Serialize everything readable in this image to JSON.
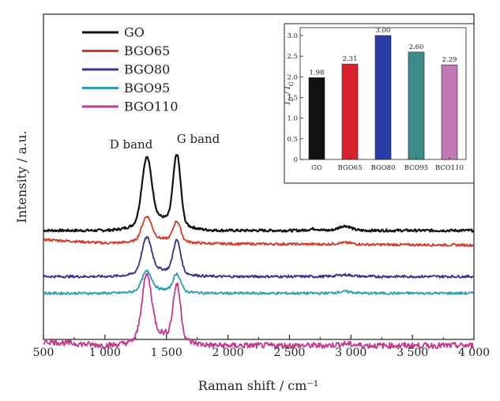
{
  "chart_data": [
    {
      "type": "line",
      "title": "",
      "xlabel": "Raman shift / cm⁻¹",
      "ylabel": "Intensity / a.u.",
      "xlim": [
        500,
        4000
      ],
      "x_ticks": [
        500,
        1000,
        1500,
        2000,
        2500,
        3000,
        3500,
        4000
      ],
      "x_tick_labels": [
        "500",
        "1 000",
        "1 500",
        "2 000",
        "2 500",
        "3 000",
        "3 500",
        "4 000"
      ],
      "y_tick_labels": [],
      "legend_placement": "top-left",
      "annotations": [
        {
          "text": "D band",
          "x": 1340
        },
        {
          "text": "G band",
          "x": 1580
        }
      ],
      "series": [
        {
          "name": "GO",
          "color": "#111111",
          "baseline": 0.5,
          "d_peak": 3.0,
          "g_peak": 3.2,
          "points": [
            [
              500,
              0.5
            ],
            [
              1000,
              0.5
            ],
            [
              1200,
              0.9
            ],
            [
              1340,
              3.5
            ],
            [
              1470,
              1.6
            ],
            [
              1580,
              3.7
            ],
            [
              1700,
              0.6
            ],
            [
              2500,
              0.5
            ],
            [
              2950,
              0.72
            ],
            [
              3200,
              0.55
            ],
            [
              4000,
              0.5
            ]
          ]
        },
        {
          "name": "BGO65",
          "color": "#d13a2a",
          "baseline": -0.1,
          "d_peak": 1.1,
          "g_peak": 0.9,
          "points": [
            [
              500,
              0.1
            ],
            [
              1000,
              -0.05
            ],
            [
              1340,
              1.0
            ],
            [
              1470,
              0.1
            ],
            [
              1580,
              0.8
            ],
            [
              1700,
              -0.1
            ],
            [
              4000,
              -0.2
            ]
          ]
        },
        {
          "name": "BGO80",
          "color": "#3b2f86",
          "baseline": -1.7,
          "d_peak": 1.6,
          "g_peak": 1.5,
          "points": [
            [
              500,
              -1.75
            ],
            [
              1340,
              -0.15
            ],
            [
              1470,
              -1.3
            ],
            [
              1580,
              -0.25
            ],
            [
              1700,
              -1.7
            ],
            [
              4000,
              -1.7
            ]
          ]
        },
        {
          "name": "BGO95",
          "color": "#2e9fae",
          "baseline": -2.5,
          "d_peak": 0.9,
          "g_peak": 0.8,
          "points": [
            [
              500,
              -2.6
            ],
            [
              1340,
              -1.7
            ],
            [
              1470,
              -2.3
            ],
            [
              1580,
              -1.8
            ],
            [
              1700,
              -2.5
            ],
            [
              4000,
              -2.5
            ]
          ]
        },
        {
          "name": "BGO110",
          "color": "#c33a8e",
          "baseline": -5.0,
          "d_peak": 2.9,
          "g_peak": 2.5,
          "points": [
            [
              500,
              -4.7
            ],
            [
              1000,
              -5.0
            ],
            [
              1340,
              -2.1
            ],
            [
              1470,
              -4.6
            ],
            [
              1580,
              -2.5
            ],
            [
              1700,
              -5.0
            ],
            [
              2950,
              -4.9
            ],
            [
              4000,
              -5.1
            ]
          ]
        }
      ]
    },
    {
      "type": "bar",
      "title": "",
      "xlabel": "",
      "ylabel_main": "I",
      "ylabel_sub1": "D",
      "ylabel_sep": " / ",
      "ylabel_sub2": "G",
      "ylim": [
        0,
        3.0
      ],
      "y_ticks": [
        "0",
        "0.5",
        "1.0",
        "1.5",
        "2.0",
        "2.5",
        "3.0"
      ],
      "categories": [
        "GO",
        "BGO65",
        "BGO80",
        "BCO95",
        "BCO110"
      ],
      "values": [
        1.98,
        2.31,
        3.0,
        2.6,
        2.29
      ],
      "value_labels": [
        "1.98",
        "2.31",
        "3.00",
        "2.60",
        "2.29"
      ],
      "colors": [
        "#111111",
        "#d8232f",
        "#2a3da6",
        "#3d8c8c",
        "#c27ab6"
      ]
    }
  ]
}
